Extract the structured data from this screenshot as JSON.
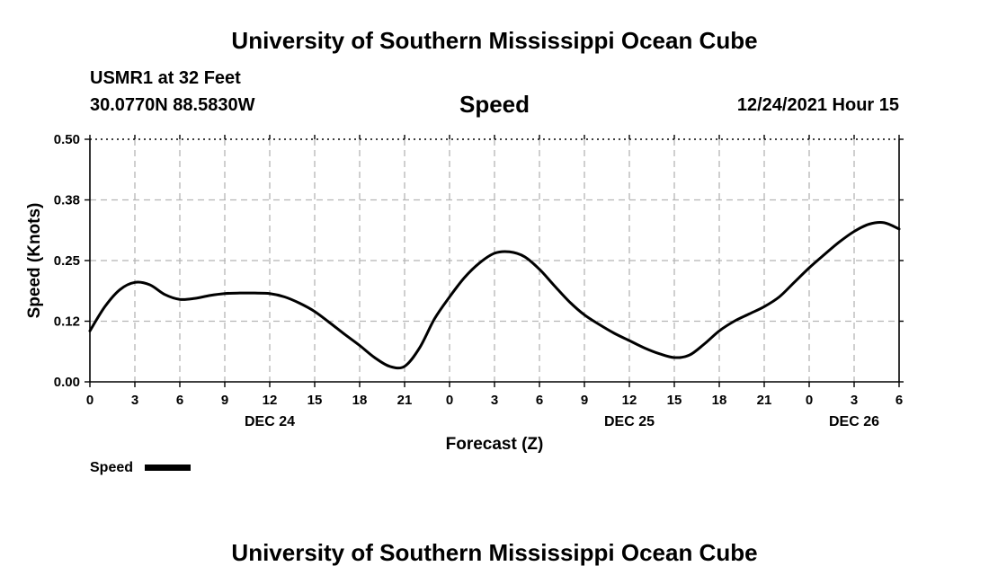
{
  "header": {
    "title": "University of Southern Mississippi Ocean Cube",
    "station": "USMR1 at 32 Feet",
    "location": "30.0770N  88.5830W",
    "variable": "Speed",
    "run": "12/24/2021 Hour 15"
  },
  "footer": {
    "title": "University of Southern Mississippi Ocean Cube"
  },
  "legend": {
    "label": "Speed",
    "color": "#000000"
  },
  "chart_data": {
    "type": "line",
    "title": "Speed",
    "xlabel": "Forecast (Z)",
    "ylabel": "Speed (Knots)",
    "xlim": [
      0,
      54
    ],
    "ylim": [
      0,
      0.5
    ],
    "grid": true,
    "legend_position": "bottom-left",
    "y_ticks": [
      0.0,
      0.125,
      0.25,
      0.375,
      0.5
    ],
    "y_tick_labels": [
      "0.00",
      "0.12",
      "0.25",
      "0.38",
      "0.50"
    ],
    "x_ticks": [
      0,
      3,
      6,
      9,
      12,
      15,
      18,
      21,
      24,
      27,
      30,
      33,
      36,
      39,
      42,
      45,
      48,
      51,
      54
    ],
    "x_tick_labels": [
      "0",
      "3",
      "6",
      "9",
      "12",
      "15",
      "18",
      "21",
      "0",
      "3",
      "6",
      "9",
      "12",
      "15",
      "18",
      "21",
      "0",
      "3",
      "6"
    ],
    "day_labels": [
      {
        "x": 12,
        "label": "DEC 24"
      },
      {
        "x": 36,
        "label": "DEC 25"
      },
      {
        "x": 51,
        "label": "DEC 26"
      }
    ],
    "series": [
      {
        "name": "Speed",
        "color": "#000000",
        "x": [
          0,
          1,
          2,
          3,
          4,
          5,
          6,
          7,
          8,
          9,
          10,
          11,
          12,
          13,
          14,
          15,
          16,
          17,
          18,
          19,
          20,
          21,
          22,
          23,
          24,
          25,
          26,
          27,
          28,
          29,
          30,
          31,
          32,
          33,
          34,
          35,
          36,
          37,
          38,
          39,
          40,
          41,
          42,
          43,
          44,
          45,
          46,
          47,
          48,
          49,
          50,
          51,
          52,
          53,
          54
        ],
        "values": [
          0.105,
          0.155,
          0.19,
          0.205,
          0.2,
          0.18,
          0.17,
          0.172,
          0.178,
          0.182,
          0.183,
          0.183,
          0.182,
          0.175,
          0.162,
          0.145,
          0.122,
          0.098,
          0.075,
          0.05,
          0.032,
          0.032,
          0.07,
          0.13,
          0.175,
          0.215,
          0.245,
          0.265,
          0.268,
          0.258,
          0.232,
          0.198,
          0.165,
          0.138,
          0.118,
          0.1,
          0.085,
          0.07,
          0.058,
          0.05,
          0.055,
          0.078,
          0.105,
          0.125,
          0.14,
          0.155,
          0.175,
          0.205,
          0.235,
          0.262,
          0.288,
          0.31,
          0.325,
          0.328,
          0.315
        ]
      }
    ]
  }
}
